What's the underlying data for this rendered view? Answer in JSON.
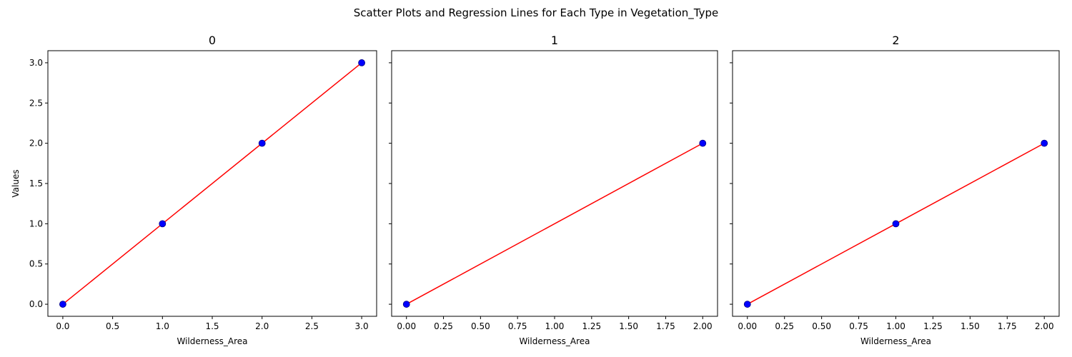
{
  "figure": {
    "suptitle": "Scatter Plots and Regression Lines for Each Type in Vegetation_Type",
    "ylabel": "Values",
    "point_color": "#0000ff",
    "point_edge_color": "#000080",
    "line_color": "#ff0000"
  },
  "chart_data": [
    {
      "type": "scatter",
      "title": "0",
      "xlabel": "Wilderness_Area",
      "ylabel": "Values",
      "xlim": [
        -0.15,
        3.15
      ],
      "ylim": [
        -0.15,
        3.15
      ],
      "xticks": [
        0.0,
        0.5,
        1.0,
        1.5,
        2.0,
        2.5,
        3.0
      ],
      "xtick_labels": [
        "0.0",
        "0.5",
        "1.0",
        "1.5",
        "2.0",
        "2.5",
        "3.0"
      ],
      "yticks": [
        0.0,
        0.5,
        1.0,
        1.5,
        2.0,
        2.5,
        3.0
      ],
      "ytick_labels": [
        "0.0",
        "0.5",
        "1.0",
        "1.5",
        "2.0",
        "2.5",
        "3.0"
      ],
      "points": [
        [
          0,
          0
        ],
        [
          1,
          1
        ],
        [
          2,
          2
        ],
        [
          3,
          3
        ]
      ],
      "regression": [
        [
          0,
          0
        ],
        [
          3,
          3
        ]
      ]
    },
    {
      "type": "scatter",
      "title": "1",
      "xlabel": "Wilderness_Area",
      "ylabel": "",
      "xlim": [
        -0.1,
        2.1
      ],
      "ylim": [
        -0.15,
        3.15
      ],
      "xticks": [
        0.0,
        0.25,
        0.5,
        0.75,
        1.0,
        1.25,
        1.5,
        1.75,
        2.0
      ],
      "xtick_labels": [
        "0.00",
        "0.25",
        "0.50",
        "0.75",
        "1.00",
        "1.25",
        "1.50",
        "1.75",
        "2.00"
      ],
      "yticks": [
        0.0,
        0.5,
        1.0,
        1.5,
        2.0,
        2.5,
        3.0
      ],
      "ytick_labels": [],
      "points": [
        [
          0,
          0
        ],
        [
          2,
          2
        ]
      ],
      "regression": [
        [
          0,
          0
        ],
        [
          2,
          2
        ]
      ]
    },
    {
      "type": "scatter",
      "title": "2",
      "xlabel": "Wilderness_Area",
      "ylabel": "",
      "xlim": [
        -0.1,
        2.1
      ],
      "ylim": [
        -0.15,
        3.15
      ],
      "xticks": [
        0.0,
        0.25,
        0.5,
        0.75,
        1.0,
        1.25,
        1.5,
        1.75,
        2.0
      ],
      "xtick_labels": [
        "0.00",
        "0.25",
        "0.50",
        "0.75",
        "1.00",
        "1.25",
        "1.50",
        "1.75",
        "2.00"
      ],
      "yticks": [
        0.0,
        0.5,
        1.0,
        1.5,
        2.0,
        2.5,
        3.0
      ],
      "ytick_labels": [],
      "points": [
        [
          0,
          0
        ],
        [
          1,
          1
        ],
        [
          2,
          2
        ]
      ],
      "regression": [
        [
          0,
          0
        ],
        [
          2,
          2
        ]
      ]
    }
  ]
}
